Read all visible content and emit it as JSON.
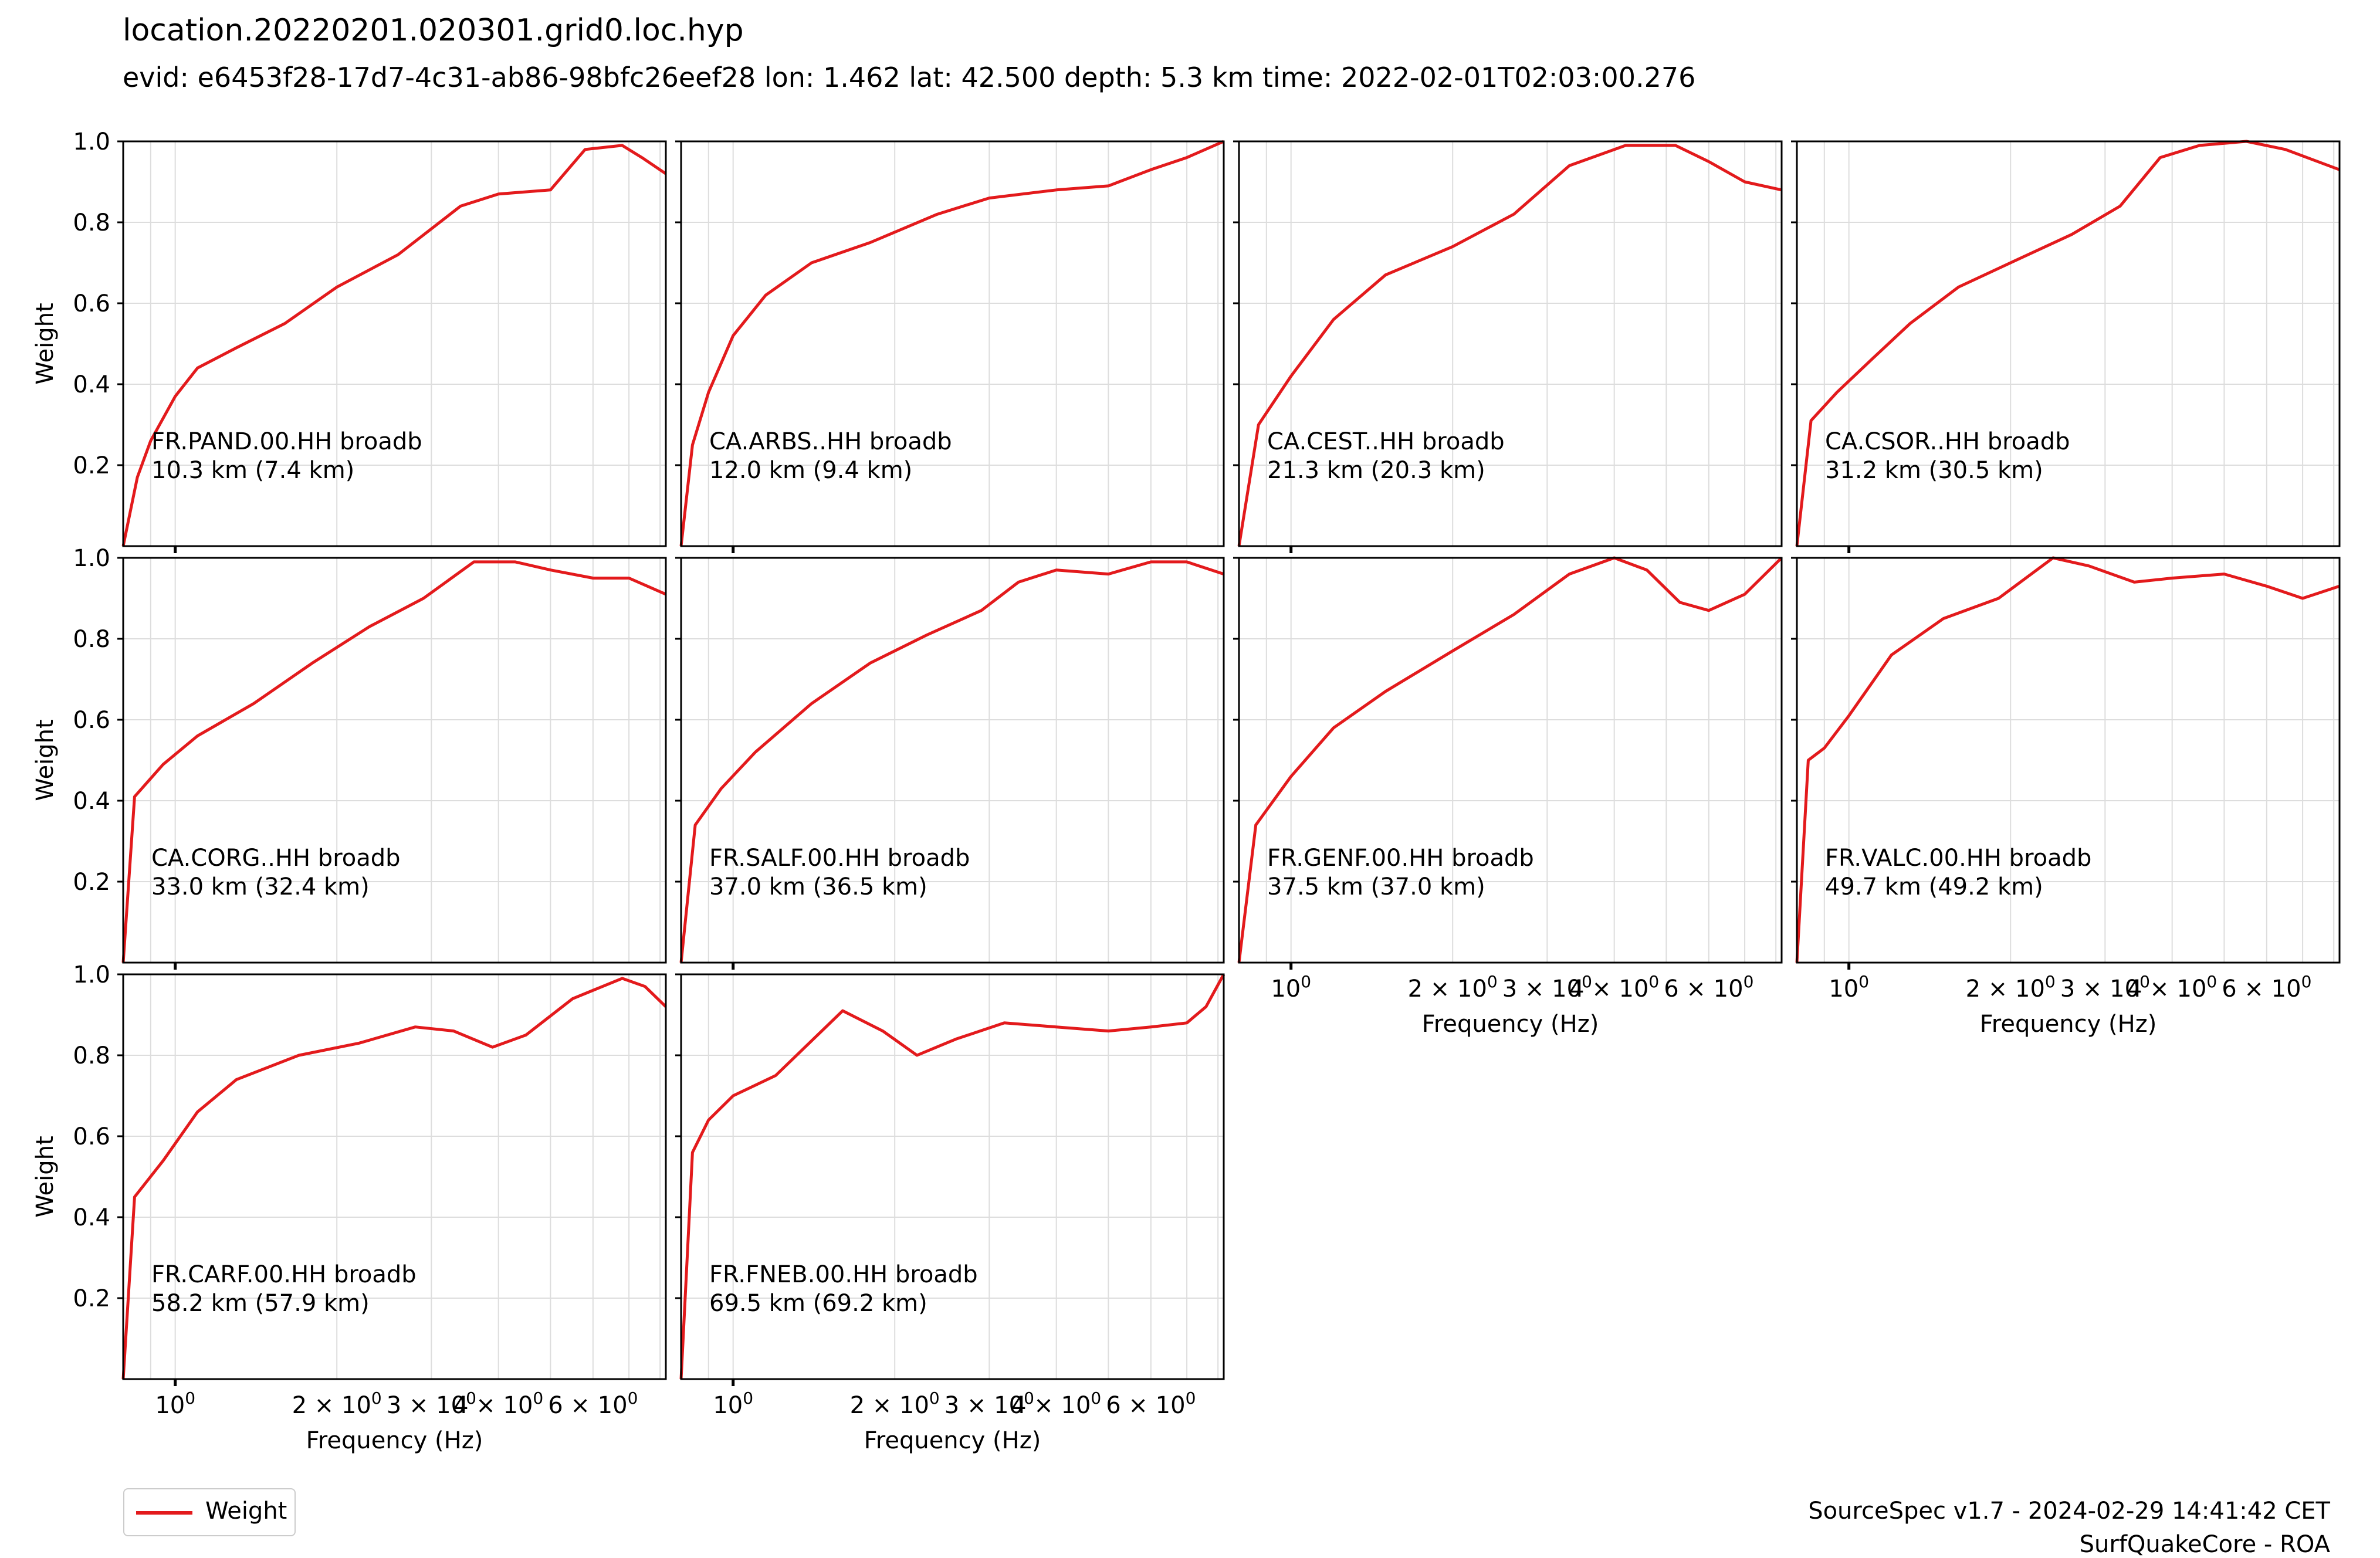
{
  "header": {
    "title": "location.20220201.020301.grid0.loc.hyp",
    "subtitle": "evid: e6453f28-17d7-4c31-ab86-98bfc26eef28 lon: 1.462 lat: 42.500 depth: 5.3 km time: 2022-02-01T02:03:00.276"
  },
  "footer": {
    "credit_line1": "SourceSpec v1.7 - 2024-02-29 14:41:42 CET",
    "credit_line2": "SurfQuakeCore - ROA"
  },
  "legend": {
    "label": "Weight",
    "color": "#e31a1c"
  },
  "colors": {
    "curve": "#e31a1c",
    "grid": "#dddddd",
    "axes": "#000000"
  },
  "chart_data": {
    "type": "line",
    "layout": "grid of small multiples, 3 rows x 4 columns (10 panels)",
    "xscale": "log",
    "xlim": [
      0.8,
      8.2
    ],
    "ylim": [
      0,
      1.0
    ],
    "grid": true,
    "legend_position": "bottom-left",
    "ylabel": "Weight",
    "xlabel": "Frequency (Hz)",
    "yticks": [
      "0.2",
      "0.4",
      "0.6",
      "0.8",
      "1.0"
    ],
    "xticks": [
      {
        "value": 1,
        "label": "10⁰"
      },
      {
        "value": 2,
        "label": "2 × 10⁰"
      },
      {
        "value": 3,
        "label": "3 × 10⁰"
      },
      {
        "value": 4,
        "label": "4 × 10⁰"
      },
      {
        "value": 6,
        "label": "6 × 10⁰"
      }
    ],
    "panels": [
      {
        "label": "FR.PAND.00.HH broadb",
        "distance": "10.3 km (7.4 km)",
        "x": [
          0.8,
          0.85,
          0.9,
          1.0,
          1.1,
          1.3,
          1.6,
          2.0,
          2.6,
          3.4,
          4.0,
          5.0,
          5.8,
          6.8,
          7.4,
          8.2
        ],
        "y": [
          0.0,
          0.17,
          0.26,
          0.37,
          0.44,
          0.49,
          0.55,
          0.64,
          0.72,
          0.84,
          0.87,
          0.88,
          0.98,
          0.99,
          0.96,
          0.92
        ]
      },
      {
        "label": "CA.ARBS..HH broadb",
        "distance": "12.0 km (9.4 km)",
        "x": [
          0.8,
          0.84,
          0.9,
          1.0,
          1.15,
          1.4,
          1.8,
          2.4,
          3.0,
          4.0,
          5.0,
          6.0,
          7.0,
          8.2
        ],
        "y": [
          0.0,
          0.25,
          0.38,
          0.52,
          0.62,
          0.7,
          0.75,
          0.82,
          0.86,
          0.88,
          0.89,
          0.93,
          0.96,
          1.0
        ]
      },
      {
        "label": "CA.CEST..HH broadb",
        "distance": "21.3 km (20.3 km)",
        "x": [
          0.8,
          0.87,
          1.0,
          1.2,
          1.5,
          2.0,
          2.6,
          3.3,
          4.2,
          5.2,
          6.0,
          7.0,
          8.2
        ],
        "y": [
          0.0,
          0.3,
          0.42,
          0.56,
          0.67,
          0.74,
          0.82,
          0.94,
          0.99,
          0.99,
          0.95,
          0.9,
          0.88
        ]
      },
      {
        "label": "CA.CSOR..HH broadb",
        "distance": "31.2 km (30.5 km)",
        "x": [
          0.8,
          0.85,
          0.95,
          1.1,
          1.3,
          1.6,
          2.0,
          2.6,
          3.2,
          3.8,
          4.5,
          5.5,
          6.5,
          8.2
        ],
        "y": [
          0.0,
          0.31,
          0.38,
          0.46,
          0.55,
          0.64,
          0.7,
          0.77,
          0.84,
          0.96,
          0.99,
          1.0,
          0.98,
          0.93
        ]
      },
      {
        "label": "CA.CORG..HH broadb",
        "distance": "33.0 km (32.4 km)",
        "x": [
          0.8,
          0.84,
          0.95,
          1.1,
          1.4,
          1.8,
          2.3,
          2.9,
          3.6,
          4.3,
          5.0,
          6.0,
          7.0,
          8.2
        ],
        "y": [
          0.0,
          0.41,
          0.49,
          0.56,
          0.64,
          0.74,
          0.83,
          0.9,
          0.99,
          0.99,
          0.97,
          0.95,
          0.95,
          0.91
        ]
      },
      {
        "label": "FR.SALF.00.HH broadb",
        "distance": "37.0 km (36.5 km)",
        "x": [
          0.8,
          0.85,
          0.95,
          1.1,
          1.4,
          1.8,
          2.3,
          2.9,
          3.4,
          4.0,
          5.0,
          6.0,
          7.0,
          8.2
        ],
        "y": [
          0.0,
          0.34,
          0.43,
          0.52,
          0.64,
          0.74,
          0.81,
          0.87,
          0.94,
          0.97,
          0.96,
          0.99,
          0.99,
          0.96
        ]
      },
      {
        "label": "FR.GENF.00.HH broadb",
        "distance": "37.5 km (37.0 km)",
        "x": [
          0.8,
          0.86,
          1.0,
          1.2,
          1.5,
          2.0,
          2.6,
          3.3,
          4.0,
          4.6,
          5.3,
          6.0,
          7.0,
          8.2
        ],
        "y": [
          0.0,
          0.34,
          0.46,
          0.58,
          0.67,
          0.77,
          0.86,
          0.96,
          1.0,
          0.97,
          0.89,
          0.87,
          0.91,
          1.0
        ]
      },
      {
        "label": "FR.VALC.00.HH broadb",
        "distance": "49.7 km (49.2 km)",
        "x": [
          0.8,
          0.84,
          0.9,
          1.0,
          1.2,
          1.5,
          1.9,
          2.4,
          2.8,
          3.4,
          4.0,
          5.0,
          6.0,
          7.0,
          8.2
        ],
        "y": [
          0.0,
          0.5,
          0.53,
          0.61,
          0.76,
          0.85,
          0.9,
          1.0,
          0.98,
          0.94,
          0.95,
          0.96,
          0.93,
          0.9,
          0.93
        ]
      },
      {
        "label": "FR.CARF.00.HH broadb",
        "distance": "58.2 km (57.9 km)",
        "x": [
          0.8,
          0.84,
          0.95,
          1.1,
          1.3,
          1.7,
          2.2,
          2.8,
          3.3,
          3.9,
          4.5,
          5.5,
          6.8,
          7.5,
          8.2
        ],
        "y": [
          0.0,
          0.45,
          0.54,
          0.66,
          0.74,
          0.8,
          0.83,
          0.87,
          0.86,
          0.82,
          0.85,
          0.94,
          0.99,
          0.97,
          0.92
        ]
      },
      {
        "label": "FR.FNEB.00.HH broadb",
        "distance": "69.5 km (69.2 km)",
        "x": [
          0.8,
          0.84,
          0.9,
          1.0,
          1.2,
          1.6,
          1.9,
          2.2,
          2.6,
          3.2,
          4.0,
          5.0,
          6.0,
          7.0,
          7.6,
          8.2
        ],
        "y": [
          0.0,
          0.56,
          0.64,
          0.7,
          0.75,
          0.91,
          0.86,
          0.8,
          0.84,
          0.88,
          0.87,
          0.86,
          0.87,
          0.88,
          0.92,
          1.0
        ]
      }
    ]
  }
}
